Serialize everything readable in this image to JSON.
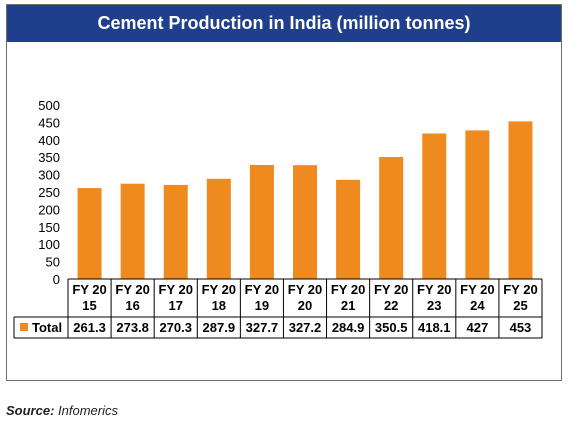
{
  "title": "Cement Production in India (million tonnes)",
  "source": {
    "label": "Source:",
    "text": " Infomerics"
  },
  "colors": {
    "bar": "#ef8a1e",
    "title_bg": "#1f3f8d",
    "grid": "#000000"
  },
  "chart_data": {
    "type": "bar",
    "title": "Cement Production in India (million tonnes)",
    "categories": [
      [
        "FY 20",
        "15"
      ],
      [
        "FY 20",
        "16"
      ],
      [
        "FY 20",
        "17"
      ],
      [
        "FY 20",
        "18"
      ],
      [
        "FY 20",
        "19"
      ],
      [
        "FY 20",
        "20"
      ],
      [
        "FY 20",
        "21"
      ],
      [
        "FY 20",
        "22"
      ],
      [
        "FY 20",
        "23"
      ],
      [
        "FY 20",
        "24"
      ],
      [
        "FY 20",
        "25"
      ]
    ],
    "series": [
      {
        "name": "Total",
        "values": [
          261.3,
          273.8,
          270.3,
          287.9,
          327.7,
          327.2,
          284.9,
          350.5,
          418.1,
          427,
          453
        ],
        "labels": [
          "261.3",
          "273.8",
          "270.3",
          "287.9",
          "327.7",
          "327.2",
          "284.9",
          "350.5",
          "418.1",
          "427",
          "453"
        ]
      }
    ],
    "ylim": [
      0,
      500
    ],
    "yticks": [
      "0",
      "50",
      "100",
      "150",
      "200",
      "250",
      "300",
      "350",
      "400",
      "450",
      "500"
    ],
    "ytick_values": [
      0,
      50,
      100,
      150,
      200,
      250,
      300,
      350,
      400,
      450,
      500
    ],
    "xlabel": "",
    "ylabel": "",
    "grid": false,
    "legend": "in data table"
  }
}
